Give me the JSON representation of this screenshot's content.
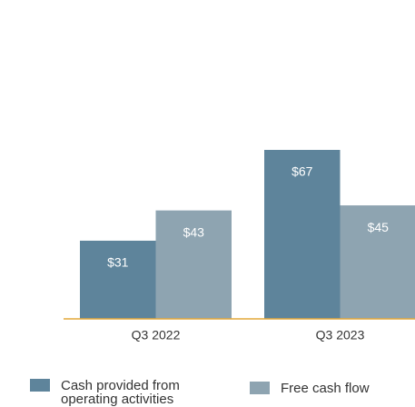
{
  "chart_data": {
    "type": "bar",
    "categories": [
      "Q3 2022",
      "Q3 2023"
    ],
    "series": [
      {
        "name": "Cash provided from operating activities",
        "color": "#5e849b",
        "values": [
          31,
          67
        ],
        "value_labels": [
          "$31",
          "$67"
        ]
      },
      {
        "name": "Free cash flow",
        "color": "#8ea4b1",
        "values": [
          43,
          45
        ],
        "value_labels": [
          "$43",
          "$45"
        ]
      }
    ],
    "baseline_color": "#e3a83a"
  }
}
